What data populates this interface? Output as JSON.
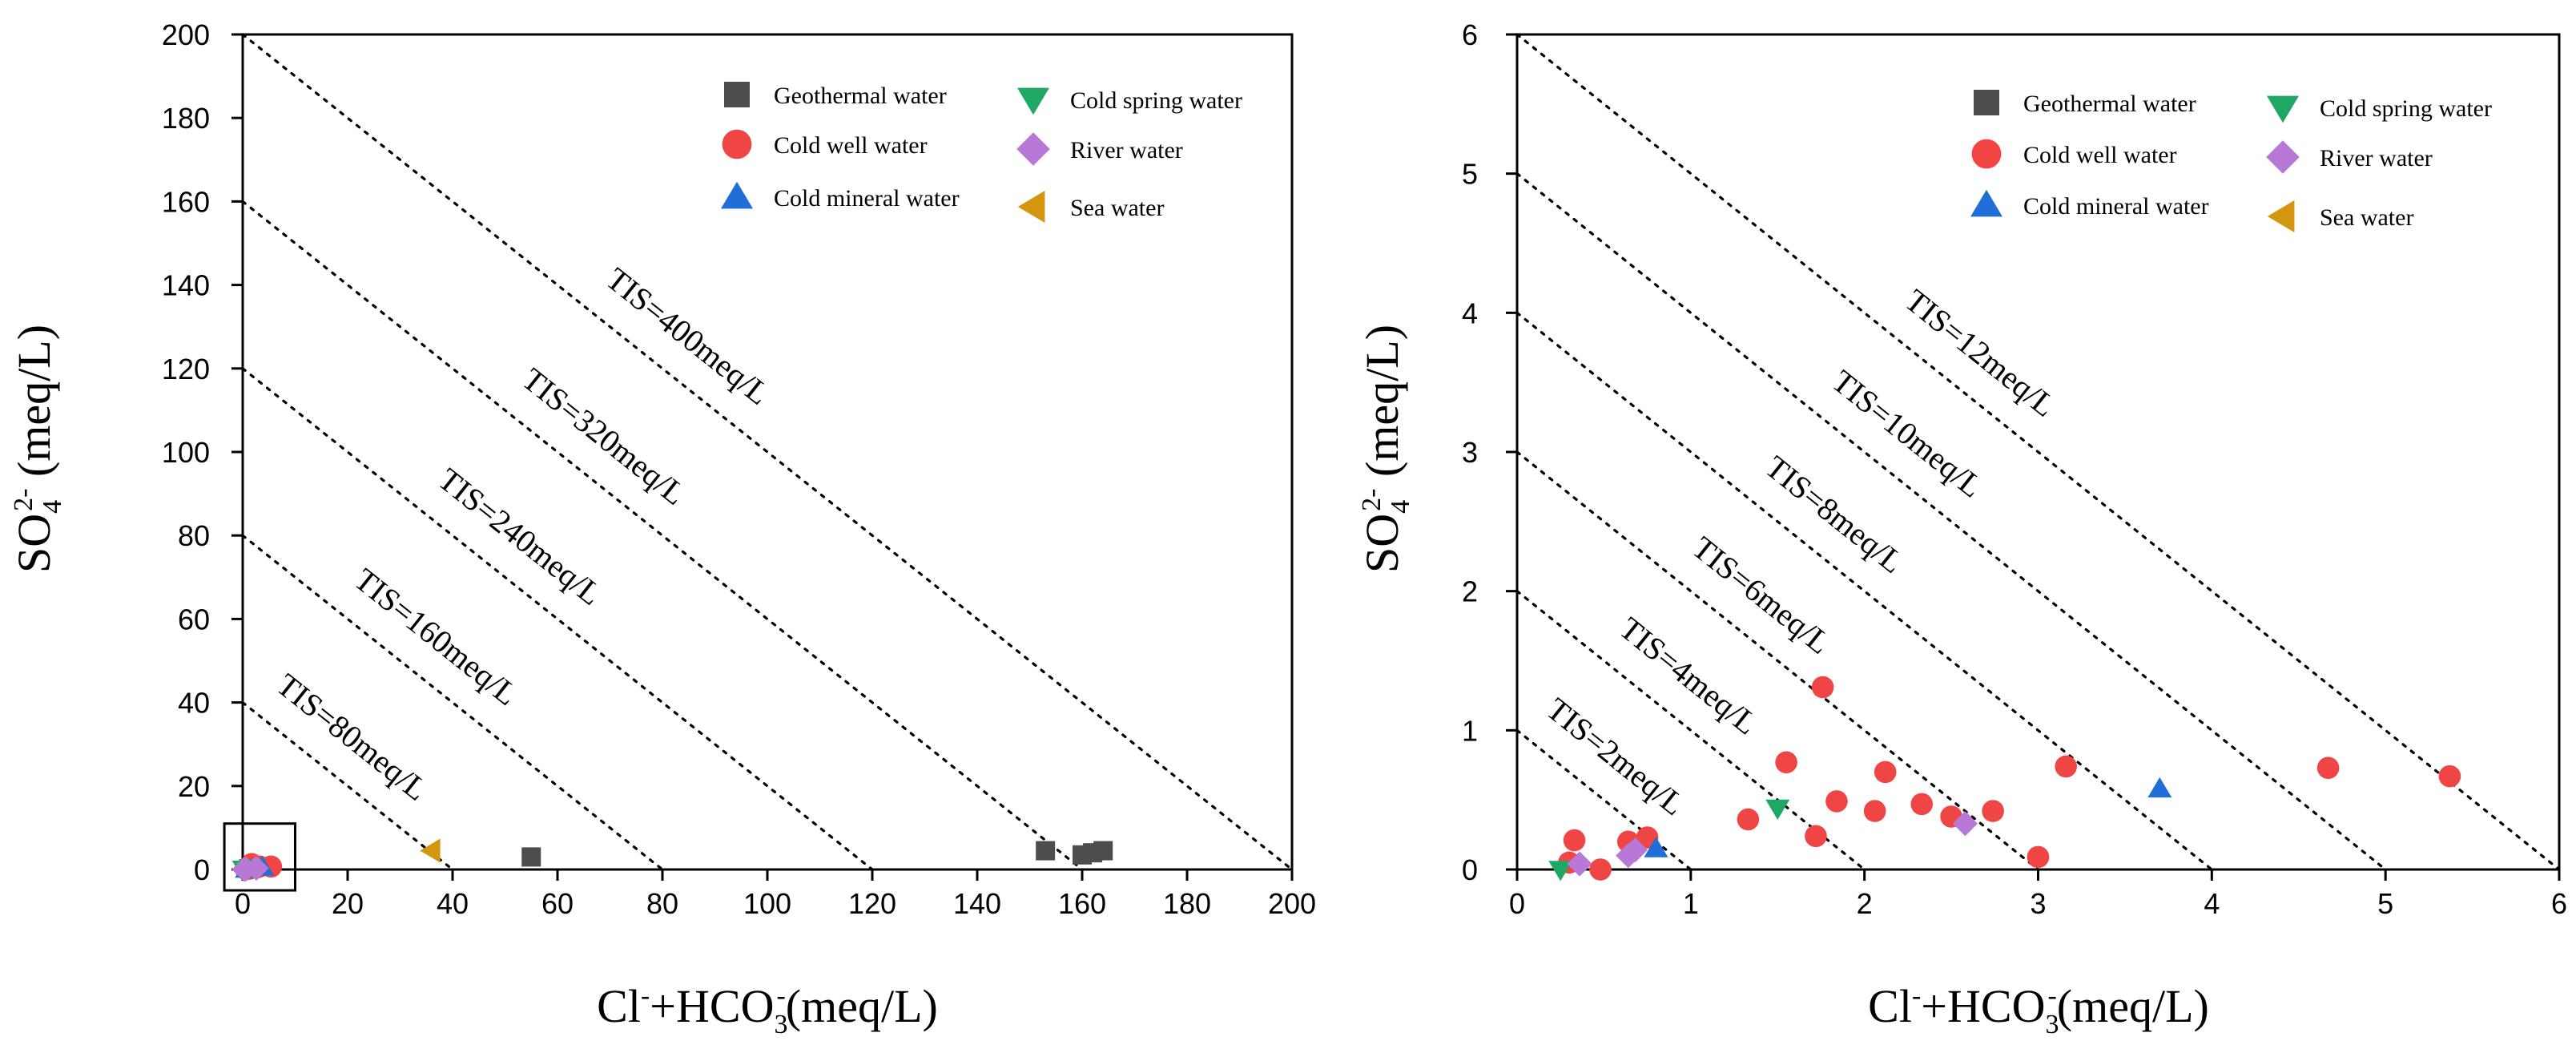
{
  "chart_data": [
    {
      "type": "scatter",
      "title": "",
      "xlabel": {
        "base": "Cl",
        "sup1": "-",
        "mid": "+HCO",
        "sub": "3",
        "sup2": "-",
        "unit": "(meq/L)"
      },
      "ylabel": {
        "base": "SO",
        "sub": "4",
        "sup": "2-",
        "unit": " (meq/L)"
      },
      "xlim": [
        0,
        200
      ],
      "ylim": [
        0,
        200
      ],
      "xticks": [
        "0",
        "20",
        "40",
        "60",
        "80",
        "100",
        "120",
        "140",
        "160",
        "180",
        "200"
      ],
      "yticks": [
        "0",
        "20",
        "40",
        "60",
        "80",
        "100",
        "120",
        "140",
        "160",
        "180",
        "200"
      ],
      "tis_lines": [
        {
          "label": "TIS=80meq/L",
          "value": 40
        },
        {
          "label": "TIS=160meq/L",
          "value": 80
        },
        {
          "label": "TIS=240meq/L",
          "value": 120
        },
        {
          "label": "TIS=320meq/L",
          "value": 160
        },
        {
          "label": "TIS=400meq/L",
          "value": 200
        }
      ],
      "inset_box": {
        "x0": -3.5,
        "x1": 10,
        "y0": -5,
        "y1": 11
      },
      "series": [
        {
          "name": "Geothermal water",
          "marker": "square",
          "color": "#4d4d4d",
          "points": [
            [
              55,
              3
            ],
            [
              153,
              4.5
            ],
            [
              160,
              3.5
            ],
            [
              162,
              4
            ],
            [
              164,
              4.5
            ]
          ]
        },
        {
          "name": "Cold well water",
          "marker": "circle",
          "color": "#f04545",
          "points": [
            [
              1.7,
              1.3
            ],
            [
              3.2,
              0.7
            ],
            [
              5.4,
              0.7
            ],
            [
              2.5,
              0.4
            ],
            [
              1.3,
              0.2
            ],
            [
              0.6,
              0.1
            ]
          ]
        },
        {
          "name": "Cold mineral water",
          "marker": "triangle-up",
          "color": "#1f6fd6",
          "points": [
            [
              3.7,
              0.6
            ],
            [
              0.8,
              0.1
            ]
          ]
        },
        {
          "name": "Cold spring water",
          "marker": "triangle-down",
          "color": "#1fa863",
          "points": [
            [
              1.5,
              0.4
            ],
            [
              0.25,
              0.05
            ]
          ]
        },
        {
          "name": "River water",
          "marker": "diamond",
          "color": "#b878d8",
          "points": [
            [
              2.6,
              0.3
            ],
            [
              0.6,
              0.1
            ],
            [
              0.3,
              0.02
            ]
          ]
        },
        {
          "name": "Sea water",
          "marker": "triangle-left",
          "color": "#d4960e",
          "points": [
            [
              36,
              4.5
            ]
          ]
        }
      ]
    },
    {
      "type": "scatter",
      "title": "",
      "xlabel": {
        "base": "Cl",
        "sup1": "-",
        "mid": "+HCO",
        "sub": "3",
        "sup2": "-",
        "unit": "(meq/L)"
      },
      "ylabel": {
        "base": "SO",
        "sub": "4",
        "sup": "2-",
        "unit": " (meq/L)"
      },
      "xlim": [
        0,
        6
      ],
      "ylim": [
        0,
        6
      ],
      "xticks": [
        "0",
        "1",
        "2",
        "3",
        "4",
        "5",
        "6"
      ],
      "yticks": [
        "0",
        "1",
        "2",
        "3",
        "4",
        "5",
        "6"
      ],
      "tis_lines": [
        {
          "label": "TIS=2meq/L",
          "value": 1
        },
        {
          "label": "TIS=4meq/L",
          "value": 2
        },
        {
          "label": "TIS=6meq/L",
          "value": 3
        },
        {
          "label": "TIS=8meq/L",
          "value": 4
        },
        {
          "label": "TIS=10meq/L",
          "value": 5
        },
        {
          "label": "TIS=12meq/L",
          "value": 6
        }
      ],
      "series": [
        {
          "name": "Geothermal water",
          "marker": "square",
          "color": "#4d4d4d",
          "points": []
        },
        {
          "name": "Cold well water",
          "marker": "circle",
          "color": "#f04545",
          "points": [
            [
              0.33,
              0.21
            ],
            [
              0.3,
              0.05
            ],
            [
              0.48,
              0.0
            ],
            [
              0.64,
              0.2
            ],
            [
              0.75,
              0.23
            ],
            [
              1.33,
              0.36
            ],
            [
              1.55,
              0.77
            ],
            [
              1.72,
              0.24
            ],
            [
              1.76,
              1.31
            ],
            [
              1.84,
              0.49
            ],
            [
              2.06,
              0.42
            ],
            [
              2.12,
              0.7
            ],
            [
              2.33,
              0.47
            ],
            [
              2.5,
              0.38
            ],
            [
              2.74,
              0.42
            ],
            [
              3.0,
              0.09
            ],
            [
              3.16,
              0.74
            ],
            [
              4.67,
              0.73
            ],
            [
              5.37,
              0.67
            ]
          ]
        },
        {
          "name": "Cold mineral water",
          "marker": "triangle-up",
          "color": "#1f6fd6",
          "points": [
            [
              0.8,
              0.15
            ],
            [
              3.7,
              0.58
            ]
          ]
        },
        {
          "name": "Cold spring water",
          "marker": "triangle-down",
          "color": "#1fa863",
          "points": [
            [
              0.25,
              0.0
            ],
            [
              1.5,
              0.44
            ]
          ]
        },
        {
          "name": "River water",
          "marker": "diamond",
          "color": "#b878d8",
          "points": [
            [
              0.36,
              0.04
            ],
            [
              0.64,
              0.1
            ],
            [
              0.68,
              0.14
            ],
            [
              2.58,
              0.33
            ]
          ]
        },
        {
          "name": "Sea water",
          "marker": "triangle-left",
          "color": "#d4960e",
          "points": []
        }
      ]
    }
  ]
}
